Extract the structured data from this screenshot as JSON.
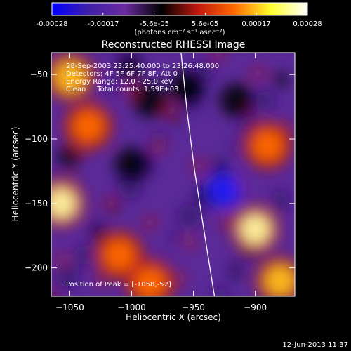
{
  "colorbar": {
    "tick_labels": [
      "-0.00028",
      "-0.00017",
      "-5.6e-05",
      "5.6e-05",
      "0.00017",
      "0.00028"
    ],
    "unit_label": "(photons cm⁻² s⁻¹ asec⁻²)",
    "range": [
      -0.00028,
      0.00028
    ],
    "colormap": [
      "#0000ff",
      "#3f1fa8",
      "#6a2aa0",
      "#000000",
      "#c0180e",
      "#ff6a00",
      "#ffff30",
      "#ffffff"
    ]
  },
  "chart_data": {
    "type": "heatmap",
    "title": "Reconstructed RHESSI Image",
    "xlabel": "Heliocentric X (arcsec)",
    "ylabel": "Heliocentric Y (arcsec)",
    "xlim": [
      -1065,
      -868
    ],
    "ylim": [
      -222,
      -33
    ],
    "x_ticks": [
      -1050,
      -1000,
      -950,
      -900
    ],
    "y_ticks": [
      -50,
      -100,
      -150,
      -200
    ],
    "x_tick_labels": [
      "−1050",
      "−1000",
      "−950",
      "−900"
    ],
    "y_tick_labels": [
      "−50",
      "−100",
      "−150",
      "−200"
    ],
    "annotations": [
      "28-Sep-2003 23:25:40.000 to 23:26:48.000",
      "Detectors: 4F 5F 6F 7F 8F, Att 0",
      "Energy Range: 12.0 - 25.0 keV",
      "Clean     Total counts: 1.59E+03"
    ],
    "peak_label": "Position of Peak = [-1058,-52]",
    "limb_curve": [
      [
        -960,
        -33
      ],
      [
        -955,
        -80
      ],
      [
        -949,
        -125
      ],
      [
        -942,
        -168
      ],
      [
        -933,
        -222
      ]
    ],
    "bright_regions": [
      {
        "x": -1057,
        "y": -150,
        "level": 0.95
      },
      {
        "x": -1050,
        "y": -52,
        "level": 0.85
      },
      {
        "x": -1035,
        "y": -90,
        "level": 0.6
      },
      {
        "x": -1010,
        "y": -190,
        "level": 0.7
      },
      {
        "x": -985,
        "y": -212,
        "level": 0.65
      },
      {
        "x": -900,
        "y": -170,
        "level": 0.9
      },
      {
        "x": -880,
        "y": -210,
        "level": 0.85
      },
      {
        "x": -890,
        "y": -105,
        "level": 0.6
      }
    ],
    "dark_regions": [
      {
        "x": -985,
        "y": -70,
        "level": -0.55
      },
      {
        "x": -955,
        "y": -60,
        "level": -0.6
      },
      {
        "x": -925,
        "y": -140,
        "level": -0.75
      },
      {
        "x": -915,
        "y": -70,
        "level": -0.5
      },
      {
        "x": -1000,
        "y": -120,
        "level": -0.45
      }
    ]
  },
  "footer": {
    "date_stamp": "12-Jun-2013 11:37"
  }
}
